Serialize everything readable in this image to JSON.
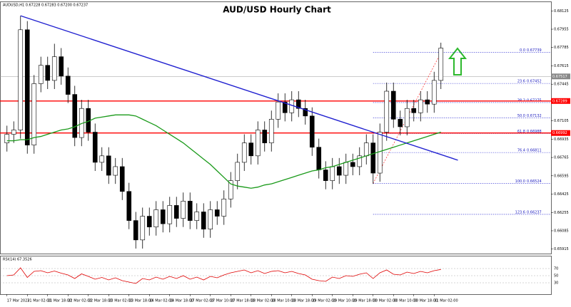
{
  "chart_data": {
    "type": "candlestick",
    "title": "AUD/USD Hourly Chart",
    "header": "AUDUSD,H1 0.67228 0.67283 0.67200 0.67237",
    "open": [
      0.669,
      0.6698,
      0.6702,
      0.6795,
      0.6688,
      0.6745,
      0.6762,
      0.6748,
      0.677,
      0.6752,
      0.6735,
      0.6695,
      0.6722,
      0.67,
      0.6672,
      0.6678,
      0.666,
      0.6668,
      0.6645,
      0.6618,
      0.66,
      0.6622,
      0.6612,
      0.6628,
      0.6615,
      0.6632,
      0.662,
      0.6636,
      0.6618,
      0.6626,
      0.661,
      0.6628,
      0.6622,
      0.6638,
      0.6655,
      0.6672,
      0.669,
      0.6678,
      0.6702,
      0.669,
      0.6712,
      0.6728,
      0.6718,
      0.673,
      0.6722,
      0.6715,
      0.6686,
      0.6665,
      0.6655,
      0.6668,
      0.666,
      0.6672,
      0.6668,
      0.6678,
      0.669,
      0.6662,
      0.67,
      0.6738,
      0.6712,
      0.6705,
      0.6722,
      0.6718,
      0.673,
      0.6726,
      0.6748
    ],
    "high": [
      0.6706,
      0.671,
      0.6808,
      0.6803,
      0.6753,
      0.677,
      0.677,
      0.6782,
      0.6778,
      0.676,
      0.6743,
      0.673,
      0.673,
      0.6708,
      0.6686,
      0.6686,
      0.6676,
      0.6676,
      0.6653,
      0.6626,
      0.663,
      0.663,
      0.6636,
      0.6636,
      0.664,
      0.664,
      0.6644,
      0.6644,
      0.6634,
      0.6634,
      0.6636,
      0.6636,
      0.6646,
      0.6663,
      0.668,
      0.6698,
      0.6698,
      0.671,
      0.671,
      0.672,
      0.6736,
      0.6736,
      0.6738,
      0.6738,
      0.673,
      0.6723,
      0.6694,
      0.6673,
      0.6676,
      0.6676,
      0.668,
      0.668,
      0.6686,
      0.6698,
      0.6698,
      0.6708,
      0.6746,
      0.6746,
      0.672,
      0.673,
      0.673,
      0.6738,
      0.6738,
      0.6756,
      0.6783
    ],
    "low": [
      0.6682,
      0.669,
      0.6694,
      0.668,
      0.668,
      0.6737,
      0.674,
      0.674,
      0.6744,
      0.6727,
      0.6687,
      0.6687,
      0.6692,
      0.6664,
      0.6664,
      0.6652,
      0.6652,
      0.6637,
      0.661,
      0.6592,
      0.6592,
      0.6604,
      0.6604,
      0.6607,
      0.6607,
      0.6612,
      0.6612,
      0.661,
      0.661,
      0.6602,
      0.6602,
      0.6614,
      0.6614,
      0.663,
      0.6647,
      0.6664,
      0.667,
      0.667,
      0.6682,
      0.6682,
      0.6704,
      0.671,
      0.671,
      0.6714,
      0.6707,
      0.6678,
      0.6657,
      0.6647,
      0.6647,
      0.6652,
      0.6652,
      0.666,
      0.666,
      0.667,
      0.6652,
      0.6654,
      0.6692,
      0.6704,
      0.6697,
      0.6697,
      0.671,
      0.671,
      0.6718,
      0.6718,
      0.674
    ],
    "close": [
      0.6698,
      0.6702,
      0.6795,
      0.6688,
      0.6745,
      0.6762,
      0.6748,
      0.677,
      0.6752,
      0.6735,
      0.6695,
      0.6722,
      0.67,
      0.6672,
      0.6678,
      0.666,
      0.6668,
      0.6645,
      0.6618,
      0.66,
      0.6622,
      0.6612,
      0.6628,
      0.6615,
      0.6632,
      0.662,
      0.6636,
      0.6618,
      0.6626,
      0.661,
      0.6628,
      0.6622,
      0.6638,
      0.6655,
      0.6672,
      0.669,
      0.6678,
      0.6702,
      0.669,
      0.6712,
      0.6728,
      0.6718,
      0.673,
      0.6722,
      0.6715,
      0.6686,
      0.6665,
      0.6655,
      0.6668,
      0.666,
      0.6672,
      0.6668,
      0.6678,
      0.669,
      0.6662,
      0.67,
      0.6738,
      0.6712,
      0.6705,
      0.6722,
      0.6718,
      0.673,
      0.6726,
      0.6748,
      0.6778
    ],
    "xticks": [
      {
        "value": 0,
        "label": "17 Mar 2023"
      },
      {
        "value": 3,
        "label": "21 Mar 02:00"
      },
      {
        "value": 6,
        "label": "21 Mar 18:00"
      },
      {
        "value": 9,
        "label": "22 Mar 02:00"
      },
      {
        "value": 12,
        "label": "22 Mar 18:00"
      },
      {
        "value": 15,
        "label": "23 Mar 02:00"
      },
      {
        "value": 18,
        "label": "23 Mar 18:00"
      },
      {
        "value": 21,
        "label": "24 Mar 02:00"
      },
      {
        "value": 24,
        "label": "24 Mar 18:00"
      },
      {
        "value": 27,
        "label": "27 Mar 02:00"
      },
      {
        "value": 30,
        "label": "27 Mar 10:00"
      },
      {
        "value": 33,
        "label": "27 Mar 18:00"
      },
      {
        "value": 36,
        "label": "28 Mar 02:00"
      },
      {
        "value": 39,
        "label": "28 Mar 10:00"
      },
      {
        "value": 42,
        "label": "28 Mar 18:00"
      },
      {
        "value": 45,
        "label": "29 Mar 02:00"
      },
      {
        "value": 48,
        "label": "29 Mar 10:00"
      },
      {
        "value": 51,
        "label": "29 Mar 18:00"
      },
      {
        "value": 54,
        "label": "30 Mar 02:00"
      },
      {
        "value": 57,
        "label": "30 Mar 10:00"
      },
      {
        "value": 60,
        "label": "30 Mar 18:00"
      },
      {
        "value": 63,
        "label": "31 Mar 02:00"
      }
    ],
    "ylim": [
      0.6588,
      0.6816
    ],
    "yticks": [
      0.68125,
      0.67955,
      0.67785,
      0.67615,
      0.67445,
      0.67275,
      0.67105,
      0.66935,
      0.66765,
      0.66595,
      0.66425,
      0.66255,
      0.66085,
      0.65915
    ],
    "moving_average": {
      "color": "#1a9a1a",
      "values": [
        0.6692,
        0.6692,
        0.6693,
        0.6693,
        0.6695,
        0.6696,
        0.6698,
        0.67,
        0.6702,
        0.6703,
        0.6705,
        0.6708,
        0.671,
        0.6713,
        0.6714,
        0.6715,
        0.6716,
        0.6716,
        0.6716,
        0.6715,
        0.6712,
        0.6709,
        0.6706,
        0.6702,
        0.6698,
        0.6694,
        0.669,
        0.6685,
        0.668,
        0.6675,
        0.667,
        0.6664,
        0.6658,
        0.6652,
        0.665,
        0.6649,
        0.6648,
        0.6649,
        0.6651,
        0.6652,
        0.6654,
        0.6656,
        0.6658,
        0.666,
        0.6662,
        0.6664,
        0.6665,
        0.6667,
        0.6668,
        0.667,
        0.6672,
        0.6674,
        0.6676,
        0.6678,
        0.668,
        0.6682,
        0.6684,
        0.6686,
        0.6688,
        0.669,
        0.6692,
        0.6694,
        0.6696,
        0.6698,
        0.67
      ]
    },
    "trendline": {
      "color": "#2020d0",
      "x": [
        2,
        66.5
      ],
      "y": [
        0.6808,
        0.6674
      ]
    },
    "levels": [
      {
        "value": 0.67289,
        "color": "#ff0000"
      },
      {
        "value": 0.66992,
        "color": "#ff0000"
      }
    ],
    "price_line": 0.67517,
    "fibonacci": {
      "color": "#2020d0",
      "from": 54,
      "to": 64,
      "levels": [
        {
          "ratio": "0.0",
          "value": 0.67739
        },
        {
          "ratio": "23.6",
          "value": 0.67452
        },
        {
          "ratio": "38.2",
          "value": 0.67275
        },
        {
          "ratio": "50.0",
          "value": 0.67132
        },
        {
          "ratio": "61.8",
          "value": 0.66988
        },
        {
          "ratio": "76.4",
          "value": 0.66811
        },
        {
          "ratio": "100.0",
          "value": 0.66524
        },
        {
          "ratio": "123.6",
          "value": 0.66237
        }
      ]
    },
    "rsi": {
      "title": "RSI(14) 67.3526",
      "color": "#e00000",
      "ylim": [
        0,
        100
      ],
      "yticks": [
        70,
        50,
        30
      ],
      "values": [
        50,
        52,
        72,
        45,
        62,
        64,
        58,
        63,
        57,
        52,
        42,
        55,
        48,
        40,
        45,
        38,
        44,
        36,
        32,
        28,
        42,
        38,
        46,
        40,
        48,
        42,
        50,
        40,
        46,
        38,
        48,
        44,
        52,
        58,
        62,
        66,
        58,
        64,
        56,
        62,
        64,
        58,
        62,
        56,
        52,
        40,
        36,
        34,
        46,
        42,
        50,
        48,
        54,
        58,
        42,
        58,
        66,
        54,
        52,
        60,
        56,
        62,
        58,
        64,
        67.35
      ]
    }
  }
}
